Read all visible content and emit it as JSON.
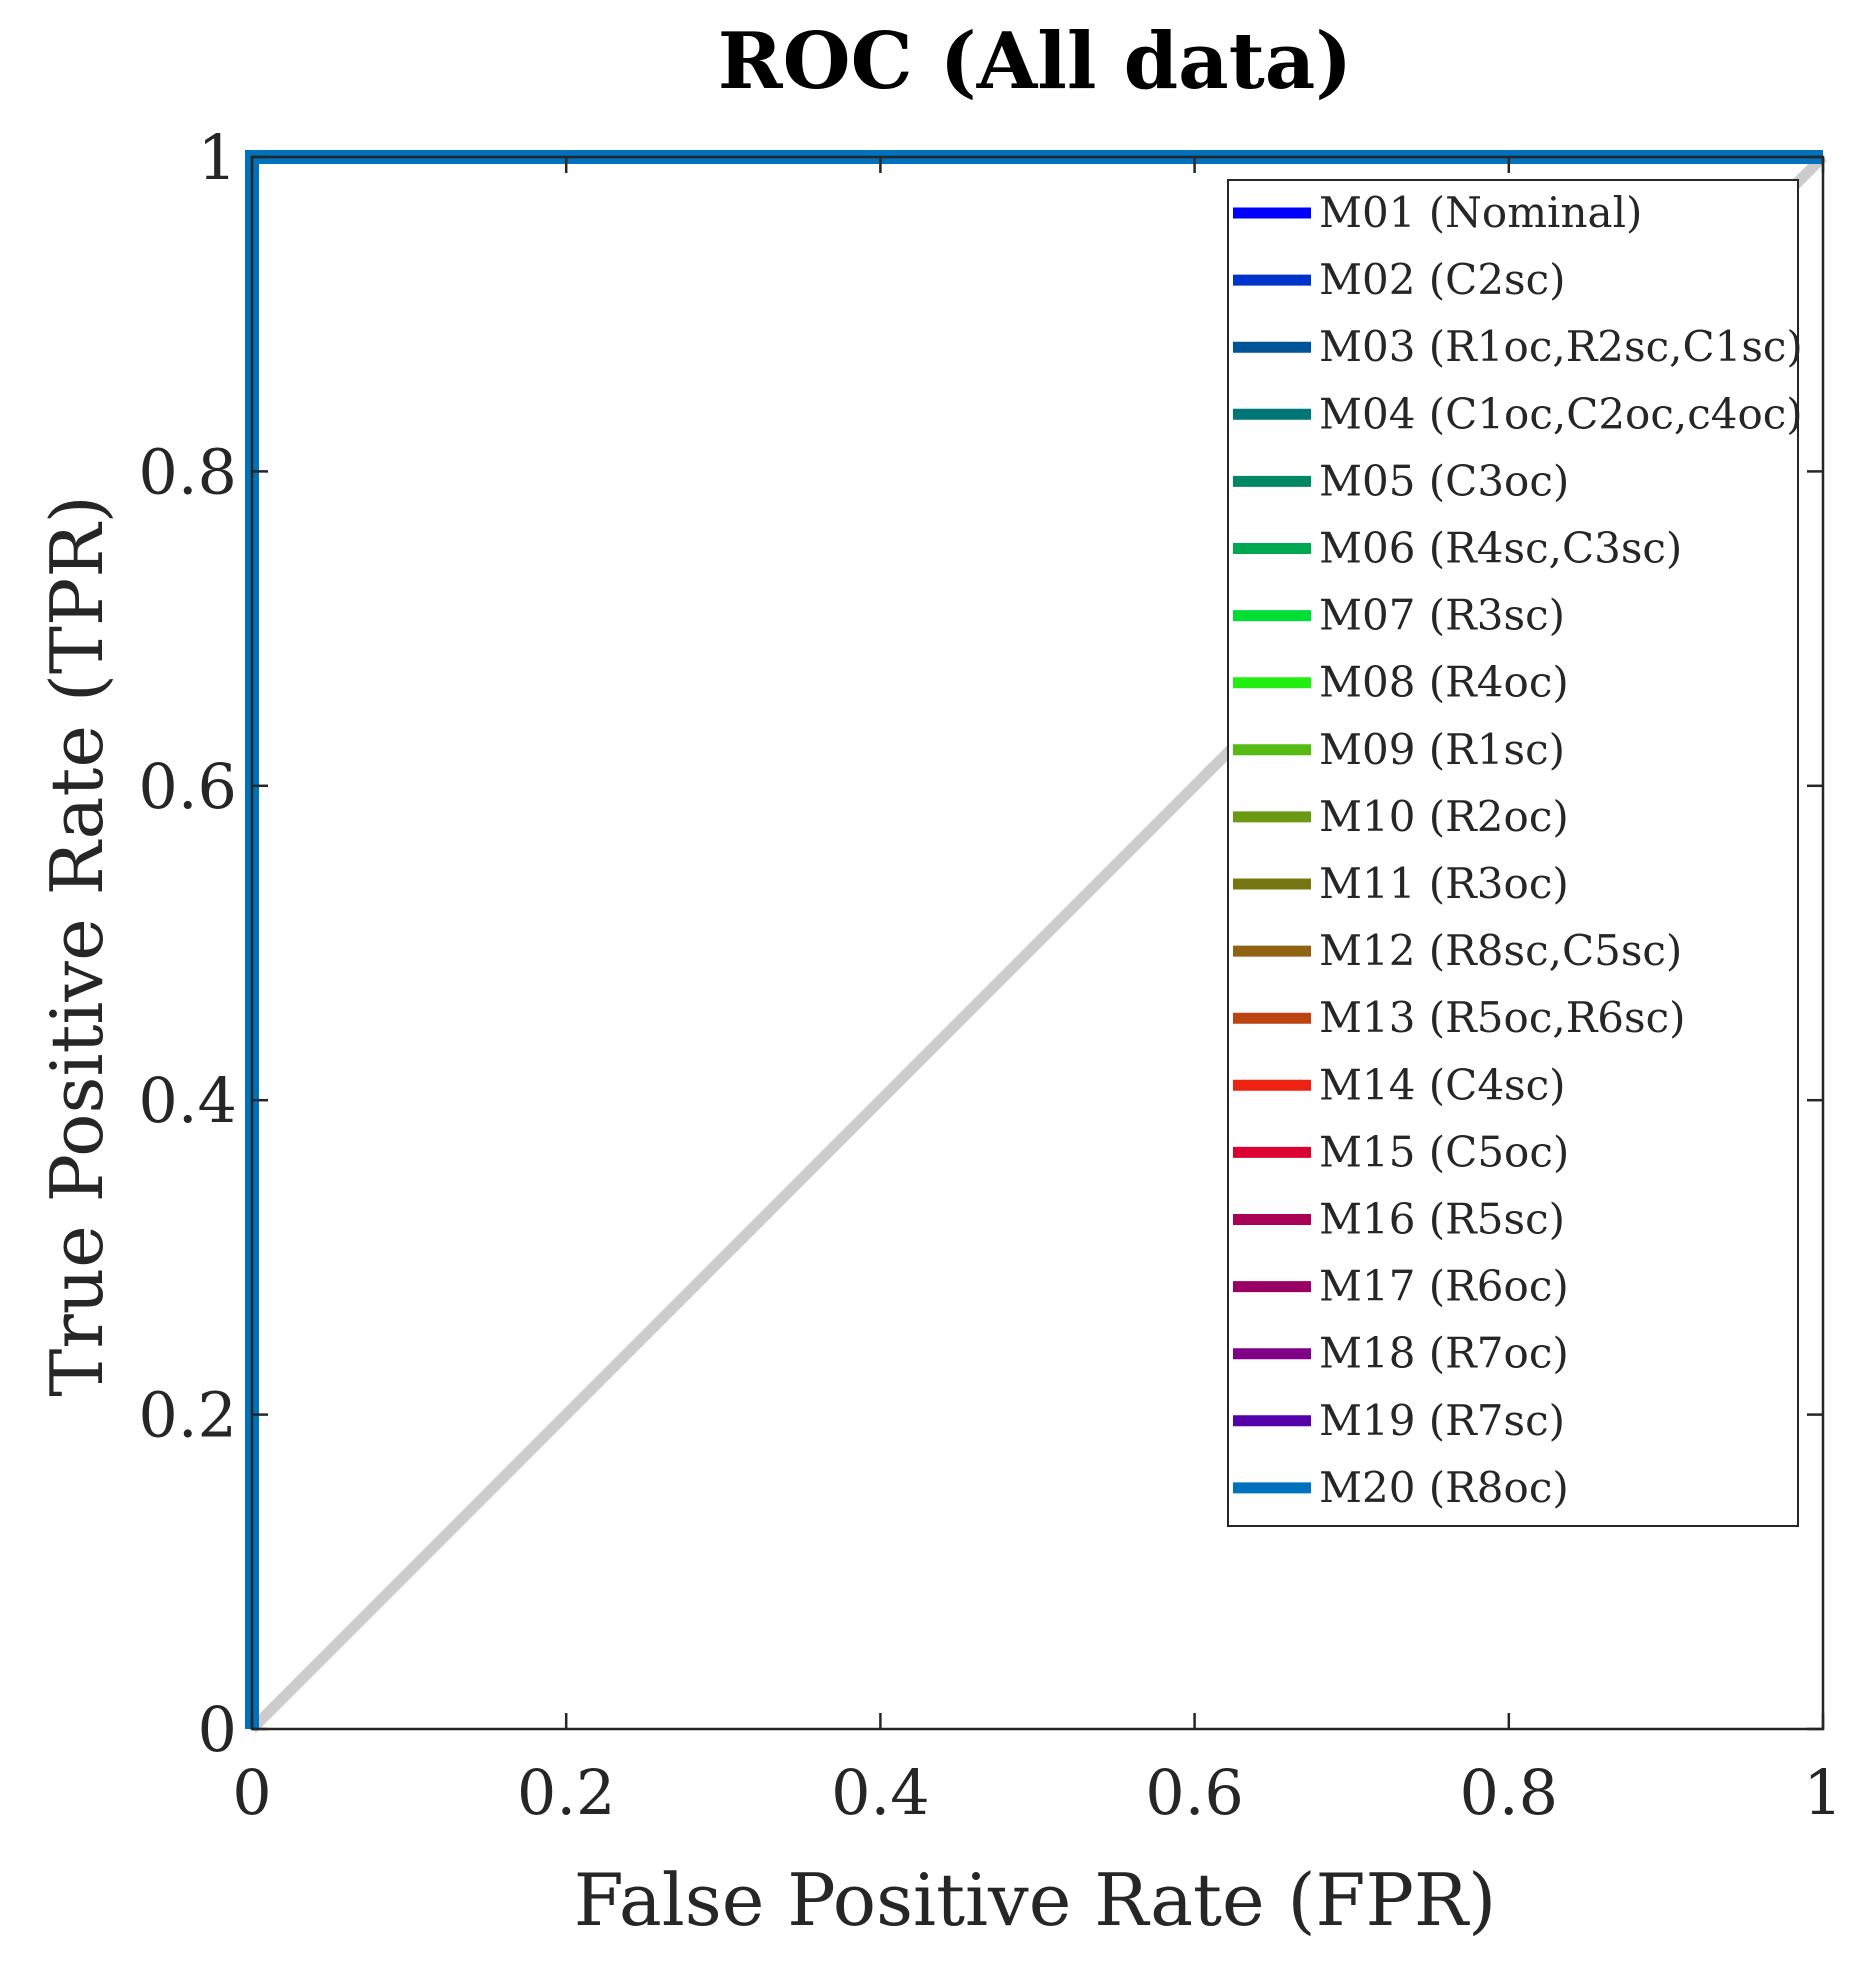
{
  "chart_data": {
    "type": "line",
    "title": "ROC (All data)",
    "xlabel": "False Positive Rate (FPR)",
    "ylabel": "True Positive Rate (TPR)",
    "xlim": [
      0,
      1
    ],
    "ylim": [
      0,
      1
    ],
    "xticks": [
      "0",
      "0.2",
      "0.4",
      "0.6",
      "0.8",
      "1"
    ],
    "yticks": [
      "0",
      "0.2",
      "0.4",
      "0.6",
      "0.8",
      "1"
    ],
    "tick_values": [
      0,
      0.2,
      0.4,
      0.6,
      0.8,
      1
    ],
    "grid": false,
    "legend_position": "top-right",
    "reference_line": {
      "name": "chance diagonal",
      "x": [
        0,
        1
      ],
      "y": [
        0,
        1
      ],
      "color": "#cccccc"
    },
    "series": [
      {
        "name": "M01 (Nominal)",
        "color": "#0000ff",
        "x": [
          0,
          0,
          1
        ],
        "y": [
          0,
          1,
          1
        ]
      },
      {
        "name": "M02 (C2sc)",
        "color": "#0033cc",
        "x": [
          0,
          0,
          1
        ],
        "y": [
          0,
          1,
          1
        ]
      },
      {
        "name": "M03 (R1oc,R2sc,C1sc)",
        "color": "#005599",
        "x": [
          0,
          0,
          1
        ],
        "y": [
          0,
          1,
          1
        ]
      },
      {
        "name": "M04 (C1oc,C2oc,c4oc)",
        "color": "#007777",
        "x": [
          0,
          0,
          1
        ],
        "y": [
          0,
          1,
          1
        ]
      },
      {
        "name": "M05 (C3oc)",
        "color": "#008866",
        "x": [
          0,
          0,
          1
        ],
        "y": [
          0,
          1,
          1
        ]
      },
      {
        "name": "M06 (R4sc,C3sc)",
        "color": "#00a852",
        "x": [
          0,
          0,
          1
        ],
        "y": [
          0,
          1,
          1
        ]
      },
      {
        "name": "M07 (R3sc)",
        "color": "#00dd33",
        "x": [
          0,
          0,
          1
        ],
        "y": [
          0,
          1,
          1
        ]
      },
      {
        "name": "M08 (R4oc)",
        "color": "#22ee11",
        "x": [
          0,
          0,
          1
        ],
        "y": [
          0,
          1,
          1
        ]
      },
      {
        "name": "M09 (R1sc)",
        "color": "#55bb11",
        "x": [
          0,
          0,
          1
        ],
        "y": [
          0,
          1,
          1
        ]
      },
      {
        "name": "M10 (R2oc)",
        "color": "#6b9911",
        "x": [
          0,
          0,
          1
        ],
        "y": [
          0,
          1,
          1
        ]
      },
      {
        "name": "M11 (R3oc)",
        "color": "#777711",
        "x": [
          0,
          0,
          1
        ],
        "y": [
          0,
          1,
          1
        ]
      },
      {
        "name": "M12 (R8sc,C5sc)",
        "color": "#8f6311",
        "x": [
          0,
          0,
          1
        ],
        "y": [
          0,
          1,
          1
        ]
      },
      {
        "name": "M13 (R5oc,R6sc)",
        "color": "#bb4411",
        "x": [
          0,
          0,
          1
        ],
        "y": [
          0,
          1,
          1
        ]
      },
      {
        "name": "M14 (C4sc)",
        "color": "#ee2211",
        "x": [
          0,
          0,
          1
        ],
        "y": [
          0,
          1,
          1
        ]
      },
      {
        "name": "M15 (C5oc)",
        "color": "#dd0033",
        "x": [
          0,
          0,
          1
        ],
        "y": [
          0,
          1,
          1
        ]
      },
      {
        "name": "M16 (R5sc)",
        "color": "#aa0055",
        "x": [
          0,
          0,
          1
        ],
        "y": [
          0,
          1,
          1
        ]
      },
      {
        "name": "M17 (R6oc)",
        "color": "#990066",
        "x": [
          0,
          0,
          1
        ],
        "y": [
          0,
          1,
          1
        ]
      },
      {
        "name": "M18 (R7oc)",
        "color": "#800088",
        "x": [
          0,
          0,
          1
        ],
        "y": [
          0,
          1,
          1
        ]
      },
      {
        "name": "M19 (R7sc)",
        "color": "#5500aa",
        "x": [
          0,
          0,
          1
        ],
        "y": [
          0,
          1,
          1
        ]
      },
      {
        "name": "M20 (R8oc)",
        "color": "#0072bd",
        "x": [
          0,
          0,
          1
        ],
        "y": [
          0,
          1,
          1
        ]
      }
    ]
  }
}
